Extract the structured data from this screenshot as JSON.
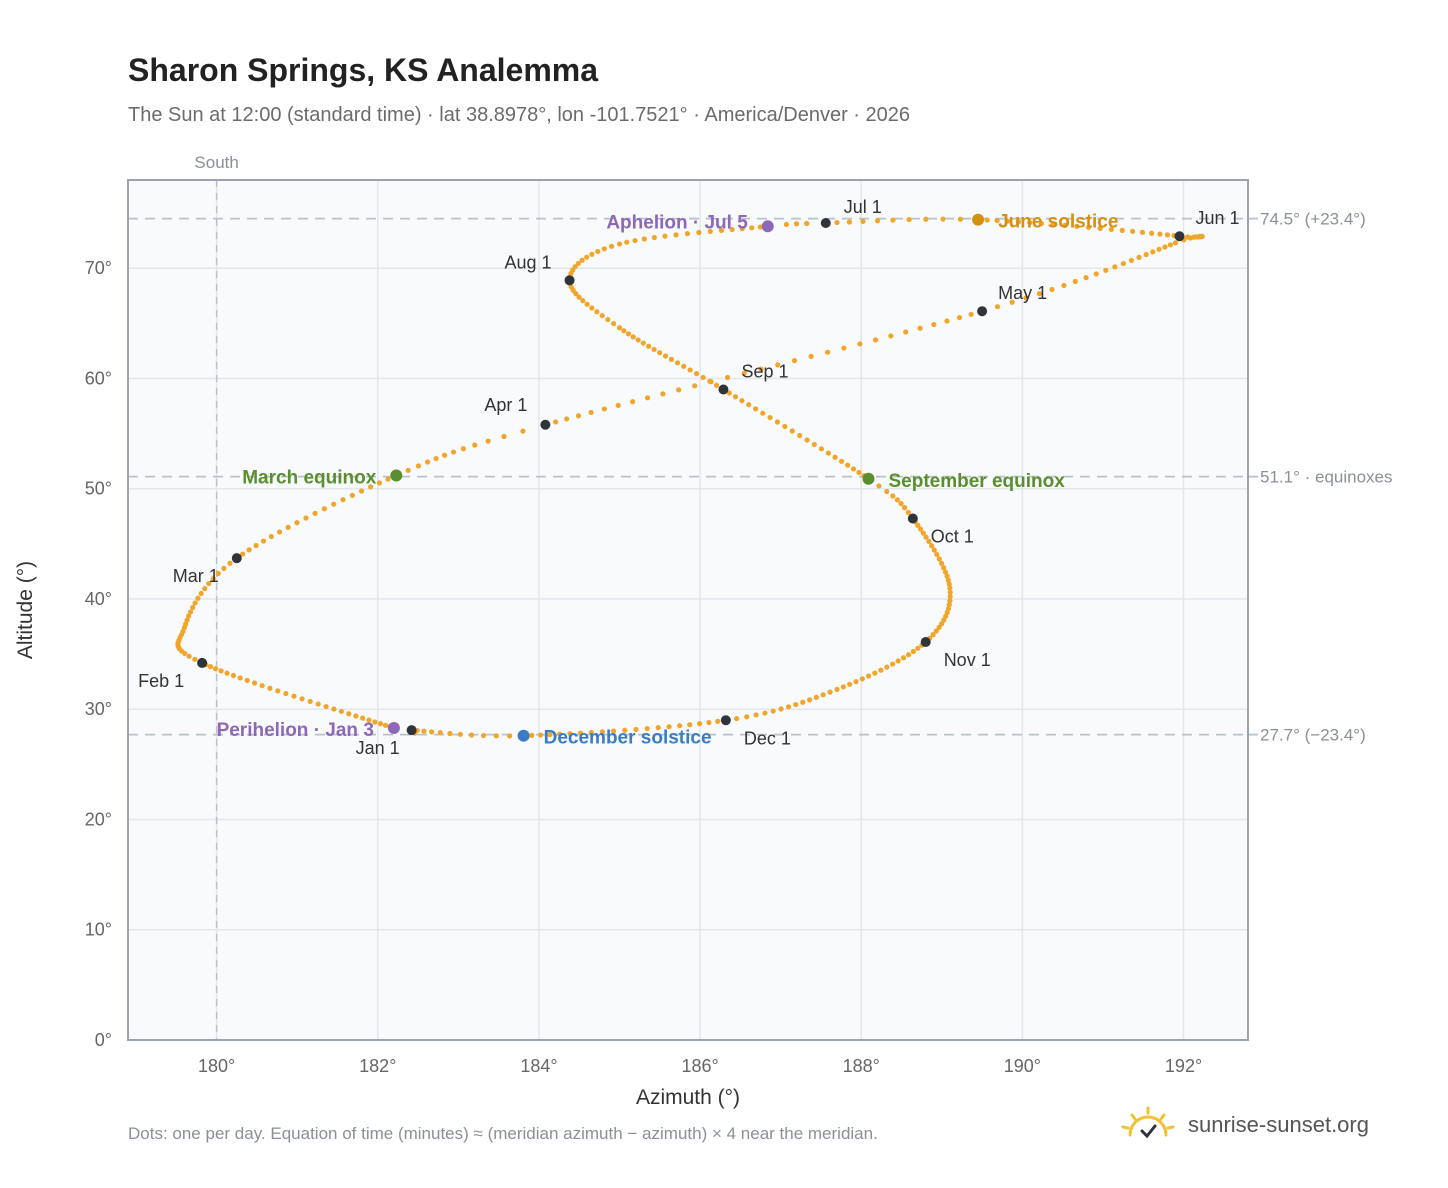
{
  "header": {
    "title": "Sharon Springs, KS Analemma",
    "subtitle": "The Sun at 12:00 (standard time) · lat 38.8978°, lon -101.7521° · America/Denver · 2026"
  },
  "footer": {
    "note": "Dots: one per day. Equation of time (minutes) ≈ (meridian azimuth − azimuth) × 4 near the meridian.",
    "brand": "sunrise-sunset.org"
  },
  "colors": {
    "curve": "#f2a52b",
    "month_marker": "#2f343b",
    "equinox": "#5a8f2f",
    "june_solstice": "#d4900f",
    "december_solstice": "#3b7dc4",
    "aphelion_perihelion": "#8d68b8",
    "reference_line": "#b9c1cb",
    "plot_bg": "#f8fafc"
  },
  "chart_data": {
    "type": "scatter",
    "title": "Sharon Springs, KS Analemma",
    "xlabel": "Azimuth (°)",
    "ylabel": "Altitude (°)",
    "xlim": [
      178.9,
      192.8
    ],
    "ylim": [
      0,
      78
    ],
    "x_ticks": [
      180,
      182,
      184,
      186,
      188,
      190,
      192
    ],
    "x_tick_labels": [
      "180°",
      "182°",
      "184°",
      "186°",
      "188°",
      "190°",
      "192°"
    ],
    "y_ticks": [
      0,
      10,
      20,
      30,
      40,
      50,
      60,
      70
    ],
    "y_tick_labels": [
      "0°",
      "10°",
      "20°",
      "30°",
      "40°",
      "50°",
      "60°",
      "70°"
    ],
    "grid": true,
    "meridian": {
      "azimuth": 180.0,
      "label": "South"
    },
    "reference_lines": [
      {
        "altitude": 74.5,
        "label": "74.5° (+23.4°)"
      },
      {
        "altitude": 51.1,
        "label": "51.1° · equinoxes"
      },
      {
        "altitude": 27.7,
        "label": "27.7° (−23.4°)"
      }
    ],
    "monthly_points": [
      {
        "label": "Jan 1",
        "az": 182.42,
        "alt": 28.1
      },
      {
        "label": "Feb 1",
        "az": 179.82,
        "alt": 34.2
      },
      {
        "label": "Mar 1",
        "az": 180.25,
        "alt": 43.7
      },
      {
        "label": "Apr 1",
        "az": 184.08,
        "alt": 55.8
      },
      {
        "label": "May 1",
        "az": 189.5,
        "alt": 66.1
      },
      {
        "label": "Jun 1",
        "az": 191.95,
        "alt": 72.9
      },
      {
        "label": "Jul 1",
        "az": 187.56,
        "alt": 74.1
      },
      {
        "label": "Aug 1",
        "az": 184.38,
        "alt": 68.9
      },
      {
        "label": "Sep 1",
        "az": 186.29,
        "alt": 59.0
      },
      {
        "label": "Oct 1",
        "az": 188.64,
        "alt": 47.3
      },
      {
        "label": "Nov 1",
        "az": 188.8,
        "alt": 36.1
      },
      {
        "label": "Dec 1",
        "az": 186.32,
        "alt": 29.0
      }
    ],
    "events": [
      {
        "label": "March equinox",
        "az": 182.23,
        "alt": 51.2,
        "color": "#5a8f2f"
      },
      {
        "label": "September equinox",
        "az": 188.09,
        "alt": 50.9,
        "color": "#5a8f2f"
      },
      {
        "label": "June solstice",
        "az": 189.45,
        "alt": 74.4,
        "color": "#d4900f"
      },
      {
        "label": "December solstice",
        "az": 183.81,
        "alt": 27.6,
        "color": "#3b7dc4"
      },
      {
        "label": "Aphelion · Jul 5",
        "az": 186.84,
        "alt": 73.8,
        "color": "#8d68b8"
      },
      {
        "label": "Perihelion · Jan 3",
        "az": 182.2,
        "alt": 28.3,
        "color": "#8d68b8"
      }
    ],
    "curve_anchor_points": [
      {
        "day": 0,
        "az": 182.42,
        "alt": 28.1
      },
      {
        "day": 2,
        "az": 182.2,
        "alt": 28.3
      },
      {
        "day": 31,
        "az": 179.82,
        "alt": 34.2
      },
      {
        "day": 44,
        "az": 179.6,
        "alt": 37.4
      },
      {
        "day": 59,
        "az": 180.25,
        "alt": 43.7
      },
      {
        "day": 78,
        "az": 182.23,
        "alt": 51.2
      },
      {
        "day": 90,
        "az": 184.08,
        "alt": 55.8
      },
      {
        "day": 120,
        "az": 189.5,
        "alt": 66.1
      },
      {
        "day": 140,
        "az": 191.9,
        "alt": 72.3
      },
      {
        "day": 151,
        "az": 191.95,
        "alt": 72.9
      },
      {
        "day": 171,
        "az": 189.45,
        "alt": 74.4
      },
      {
        "day": 181,
        "az": 187.56,
        "alt": 74.1
      },
      {
        "day": 185,
        "az": 186.84,
        "alt": 73.8
      },
      {
        "day": 200,
        "az": 185.0,
        "alt": 72.2
      },
      {
        "day": 212,
        "az": 184.38,
        "alt": 68.9
      },
      {
        "day": 225,
        "az": 185.0,
        "alt": 64.6
      },
      {
        "day": 243,
        "az": 186.29,
        "alt": 59.0
      },
      {
        "day": 265,
        "az": 188.09,
        "alt": 50.9
      },
      {
        "day": 273,
        "az": 188.64,
        "alt": 47.3
      },
      {
        "day": 290,
        "az": 189.1,
        "alt": 41.0
      },
      {
        "day": 304,
        "az": 188.8,
        "alt": 36.1
      },
      {
        "day": 320,
        "az": 187.7,
        "alt": 31.8
      },
      {
        "day": 334,
        "az": 186.32,
        "alt": 29.0
      },
      {
        "day": 354,
        "az": 183.81,
        "alt": 27.6
      },
      {
        "day": 365,
        "az": 182.42,
        "alt": 28.1
      }
    ]
  }
}
